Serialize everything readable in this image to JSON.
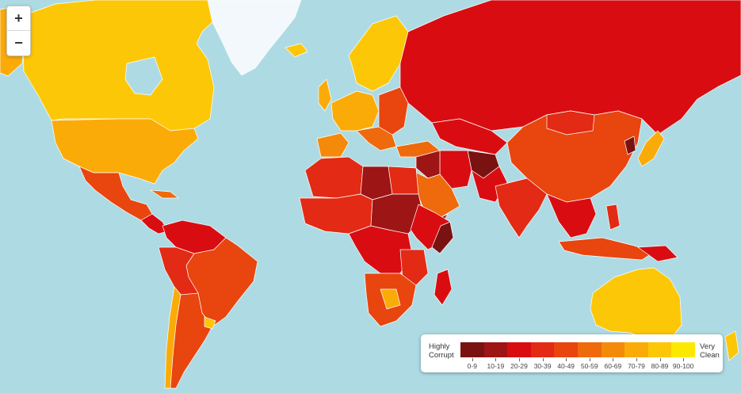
{
  "zoom_controls": {
    "zoom_in": "+",
    "zoom_out": "−"
  },
  "legend": {
    "left_label_1": "Highly",
    "left_label_2": "Corrupt",
    "right_label_1": "Very",
    "right_label_2": "Clean",
    "bins": [
      {
        "label": "0-9",
        "color": "#7a1212"
      },
      {
        "label": "10-19",
        "color": "#9e1515"
      },
      {
        "label": "20-29",
        "color": "#d90d11"
      },
      {
        "label": "30-39",
        "color": "#e32a14"
      },
      {
        "label": "40-49",
        "color": "#e8450f"
      },
      {
        "label": "50-59",
        "color": "#ee6a0c"
      },
      {
        "label": "60-69",
        "color": "#f58a0a"
      },
      {
        "label": "70-79",
        "color": "#fbab08"
      },
      {
        "label": "80-89",
        "color": "#fcc707"
      },
      {
        "label": "90-100",
        "color": "#fde900"
      }
    ]
  },
  "map_colors": {
    "ocean": "#aedbe3",
    "greenland": "#f2f8fb",
    "border": "#ffffff"
  }
}
